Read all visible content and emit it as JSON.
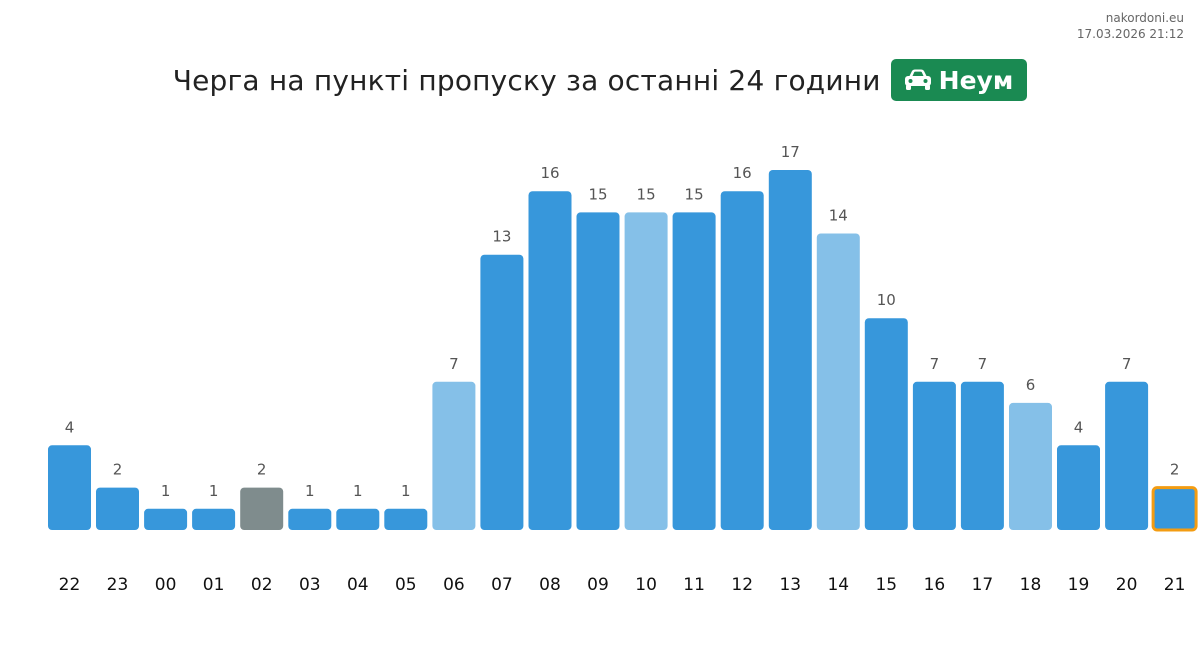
{
  "meta": {
    "site": "nakordoni.eu",
    "timestamp": "17.03.2026 21:12"
  },
  "header": {
    "title": "Черга на пункті пропуску за останні 24 години",
    "badge_label": "Неум",
    "badge_icon": "car-icon",
    "badge_color": "#1a8a52"
  },
  "colors": {
    "bar_default": "#3797db",
    "bar_light": "#85c0e8",
    "bar_gray": "#7f8c8d",
    "highlight_border": "#f39c12"
  },
  "chart_data": {
    "type": "bar",
    "categories": [
      "22",
      "23",
      "00",
      "01",
      "02",
      "03",
      "04",
      "05",
      "06",
      "07",
      "08",
      "09",
      "10",
      "11",
      "12",
      "13",
      "14",
      "15",
      "16",
      "17",
      "18",
      "19",
      "20",
      "21"
    ],
    "values": [
      4,
      2,
      1,
      1,
      2,
      1,
      1,
      1,
      7,
      13,
      16,
      15,
      15,
      15,
      16,
      17,
      14,
      10,
      7,
      7,
      6,
      4,
      7,
      2
    ],
    "bar_styles": [
      "default",
      "default",
      "default",
      "default",
      "gray",
      "default",
      "default",
      "default",
      "light",
      "default",
      "default",
      "default",
      "light",
      "default",
      "default",
      "default",
      "light",
      "default",
      "default",
      "default",
      "light",
      "default",
      "default",
      "highlight"
    ],
    "ylim": [
      0,
      17
    ],
    "grid": false,
    "legend": "none"
  }
}
